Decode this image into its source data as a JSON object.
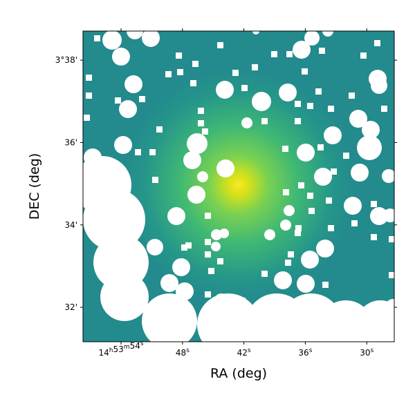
{
  "chart_data": {
    "type": "image",
    "xlabel": "RA (deg)",
    "ylabel": "DEC (deg)",
    "xlim": [
      223.4905,
      223.3638
    ],
    "ylim": [
      3.5194,
      3.6451
    ],
    "xticks": [
      {
        "value": 223.475,
        "label": "14h53m54s"
      },
      {
        "value": 223.45,
        "label": "48s"
      },
      {
        "value": 223.425,
        "label": "42s"
      },
      {
        "value": 223.4,
        "label": "36s"
      },
      {
        "value": 223.375,
        "label": "30s"
      }
    ],
    "yticks": [
      {
        "value": 3.63333,
        "label": "3°38'"
      },
      {
        "value": 3.6,
        "label": "36'"
      },
      {
        "value": 3.56667,
        "label": "34'"
      },
      {
        "value": 3.53333,
        "label": "32'"
      }
    ]
  }
}
